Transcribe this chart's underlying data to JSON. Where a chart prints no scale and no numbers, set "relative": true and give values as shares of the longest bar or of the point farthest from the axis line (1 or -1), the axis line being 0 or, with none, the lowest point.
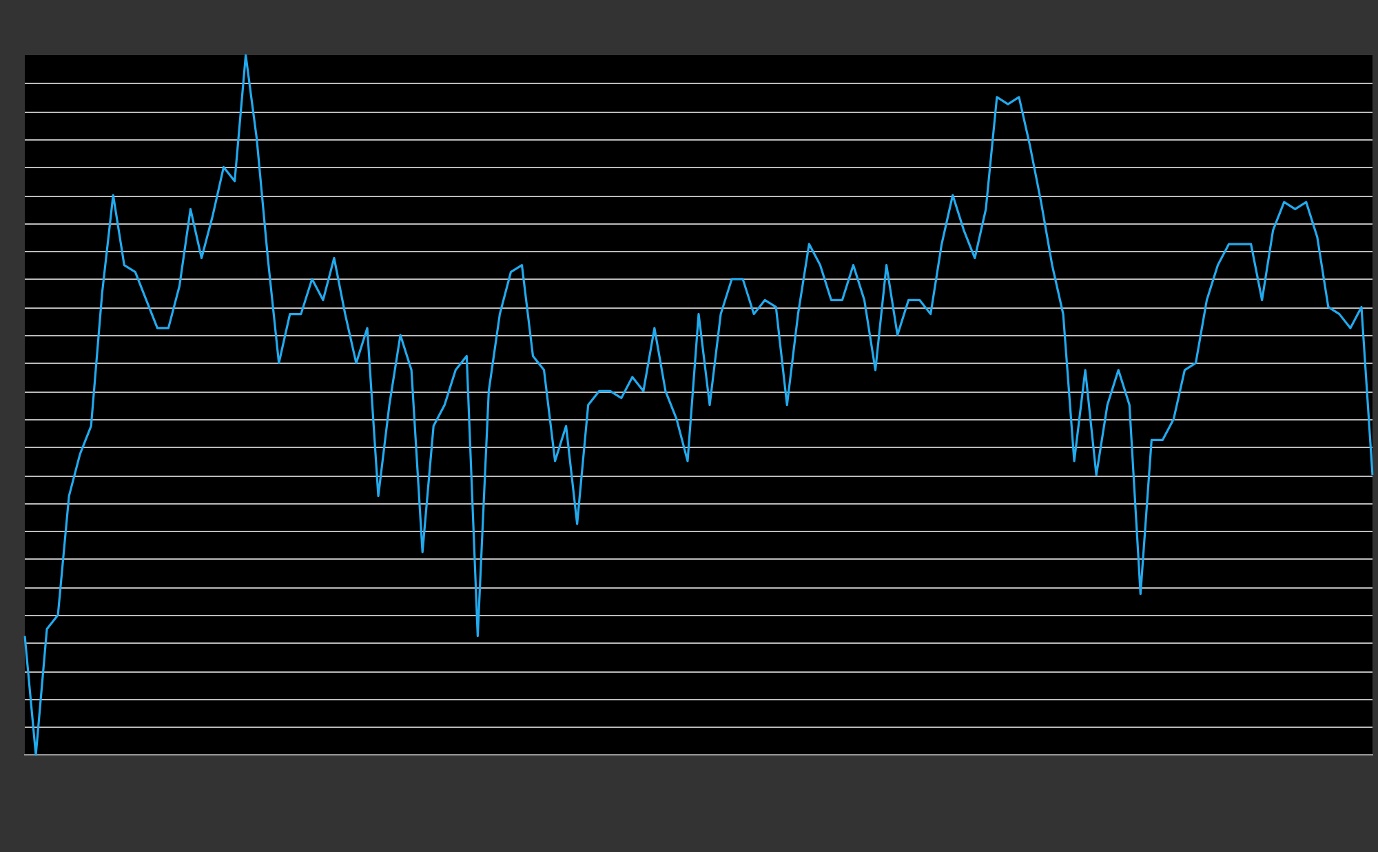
{
  "chart_data": {
    "type": "line",
    "relative": true,
    "grid": "y",
    "marker": "none",
    "line_style": "solid",
    "categories": [
      null,
      null,
      null,
      null,
      null,
      null,
      null,
      null,
      null,
      null,
      null,
      null,
      null,
      null,
      null,
      null,
      null,
      null,
      null,
      null,
      null,
      null,
      null,
      null,
      null,
      null,
      null,
      null,
      null,
      null,
      null,
      null,
      null,
      null,
      null,
      null,
      null,
      null,
      null,
      null,
      null,
      null,
      null,
      null,
      null,
      null,
      null,
      null,
      null,
      null,
      null,
      null,
      null,
      null,
      null,
      null,
      null,
      null,
      null,
      null,
      null,
      null,
      null,
      null,
      null,
      null,
      null,
      null,
      null,
      null,
      null,
      null,
      null,
      null,
      null,
      null,
      null,
      null,
      null,
      null,
      null,
      null,
      null,
      null,
      null,
      null,
      null,
      null,
      null,
      null,
      null,
      null,
      null,
      null,
      null,
      null,
      null,
      null,
      null,
      null,
      null,
      null,
      null,
      null,
      null,
      null,
      null,
      null,
      null,
      null,
      null,
      null,
      null,
      null,
      null,
      null,
      null,
      null,
      null,
      null,
      null,
      null,
      null
    ],
    "series": [
      {
        "color": "#22aaee",
        "values": [
          0.17,
          0,
          0.18,
          0.2,
          0.37,
          0.43,
          0.47,
          0.66,
          0.8,
          0.7,
          0.69,
          0.65,
          0.61,
          0.61,
          0.67,
          0.78,
          0.71,
          0.77,
          0.84,
          0.82,
          1,
          0.88,
          0.71,
          0.56,
          0.63,
          0.63,
          0.68,
          0.65,
          0.71,
          0.63,
          0.56,
          0.61,
          0.37,
          0.5,
          0.6,
          0.55,
          0.29,
          0.47,
          0.5,
          0.55,
          0.57,
          0.17,
          0.52,
          0.63,
          0.69,
          0.7,
          0.57,
          0.55,
          0.42,
          0.47,
          0.33,
          0.5,
          0.52,
          0.52,
          0.51,
          0.54,
          0.52,
          0.61,
          0.52,
          0.48,
          0.42,
          0.63,
          0.5,
          0.63,
          0.68,
          0.68,
          0.63,
          0.65,
          0.64,
          0.5,
          0.63,
          0.73,
          0.7,
          0.65,
          0.65,
          0.7,
          0.65,
          0.55,
          0.7,
          0.6,
          0.65,
          0.65,
          0.63,
          0.73,
          0.8,
          0.75,
          0.71,
          0.78,
          0.94,
          0.93,
          0.94,
          0.87,
          0.79,
          0.7,
          0.63,
          0.42,
          0.55,
          0.4,
          0.5,
          0.55,
          0.5,
          0.23,
          0.45,
          0.45,
          0.48,
          0.55,
          0.56,
          0.65,
          0.7,
          0.73,
          0.73,
          0.73,
          0.65,
          0.75,
          0.79,
          0.78,
          0.79,
          0.74,
          0.64,
          0.63,
          0.61,
          0.64,
          0.4
        ]
      }
    ]
  }
}
